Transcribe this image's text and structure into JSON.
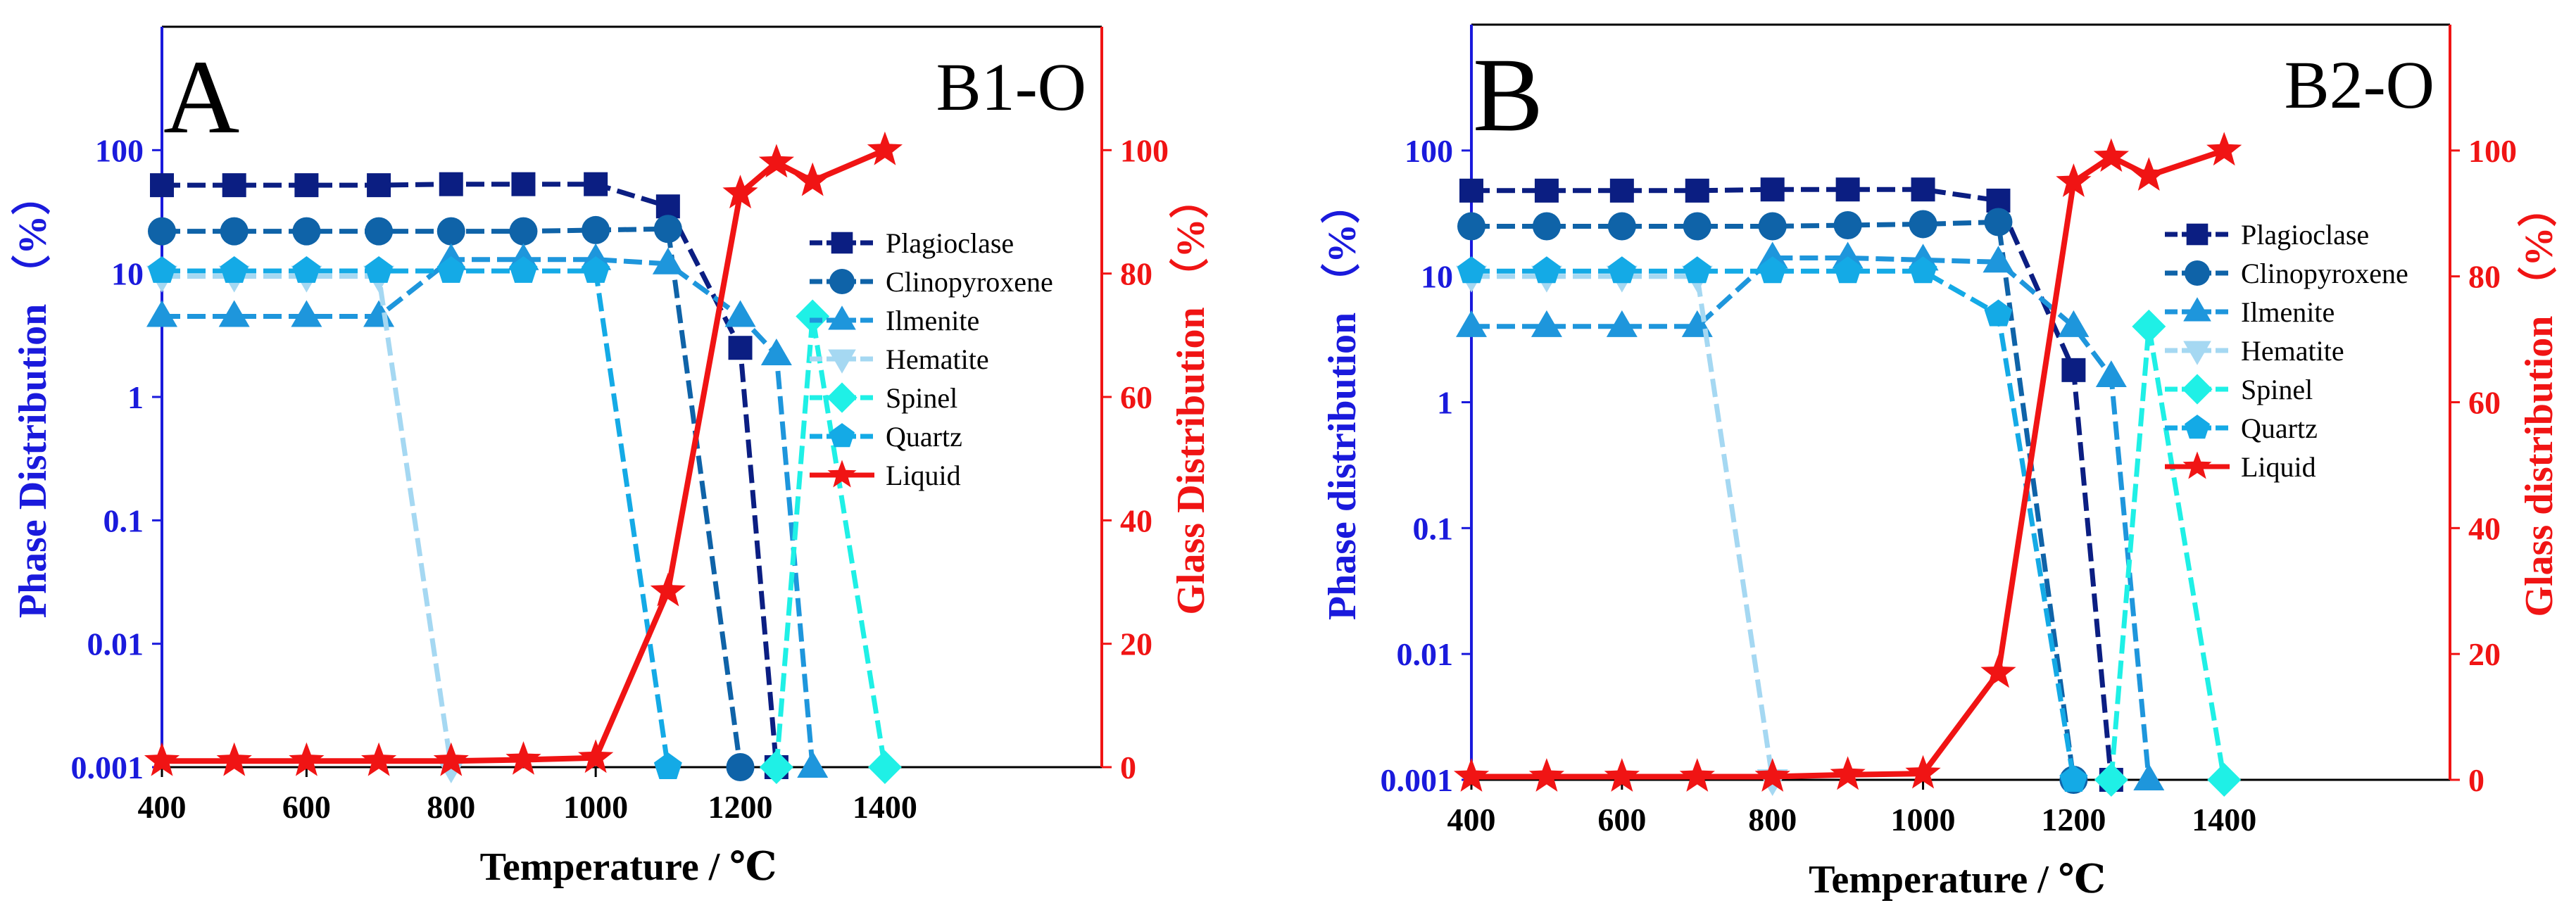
{
  "colors": {
    "left_axis": "#1a1adc",
    "right_axis": "#f01414",
    "frame": "#000000",
    "Plagioclase": "#0b1e82",
    "Clinopyroxene": "#0f63a8",
    "Ilmenite": "#1e96dc",
    "Hematite": "#a5d8f2",
    "Spinel": "#1ff0e6",
    "Quartz": "#14aae6",
    "Liquid": "#f01414"
  },
  "chart_data": [
    {
      "type": "line",
      "panel_letter": "A",
      "title": "B1-O",
      "xlabel": "Temperature / ℃",
      "ylabel": "Phase Distribution （%）",
      "y2label": "Glass Distribution （%）",
      "xlim": [
        400,
        1700
      ],
      "xticks": [
        400,
        600,
        800,
        1000,
        1200,
        1400
      ],
      "xtick_labels": [
        "400",
        "600",
        "800",
        "1000",
        "1200",
        "1400"
      ],
      "ylog_range": [
        0.001,
        1000
      ],
      "yticks": [
        0.001,
        0.01,
        0.1,
        1,
        10,
        100
      ],
      "ytick_labels": [
        "0.001",
        "0.01",
        "0.1",
        "1",
        "10",
        "100"
      ],
      "y2lim": [
        0,
        120
      ],
      "y2ticks": [
        0,
        20,
        40,
        60,
        80,
        100
      ],
      "y2tick_labels": [
        "0",
        "20",
        "40",
        "60",
        "80",
        "100"
      ],
      "legend_position": "right-middle",
      "series": [
        {
          "name": "Plagioclase",
          "axis": "left",
          "marker": "square",
          "x": [
            400,
            500,
            600,
            700,
            800,
            900,
            1000,
            1100,
            1200,
            1250
          ],
          "y": [
            52,
            52,
            52,
            52,
            53,
            53,
            53,
            35,
            2.5,
            0.001
          ]
        },
        {
          "name": "Clinopyroxene",
          "axis": "left",
          "marker": "circle",
          "x": [
            400,
            500,
            600,
            700,
            800,
            900,
            1000,
            1100,
            1200
          ],
          "y": [
            22,
            22,
            22,
            22,
            22,
            22,
            22.5,
            23,
            0.001
          ]
        },
        {
          "name": "Ilmenite",
          "axis": "left",
          "marker": "triangle-up",
          "x": [
            400,
            500,
            600,
            700,
            800,
            900,
            1000,
            1100,
            1200,
            1250,
            1300
          ],
          "y": [
            4.5,
            4.5,
            4.5,
            4.5,
            13,
            13,
            13,
            12,
            4.5,
            2.2,
            0.001
          ]
        },
        {
          "name": "Hematite",
          "axis": "left",
          "marker": "triangle-down",
          "x": [
            400,
            500,
            600,
            700,
            800
          ],
          "y": [
            9.5,
            9.5,
            9.5,
            9.5,
            0.001
          ]
        },
        {
          "name": "Spinel",
          "axis": "left",
          "marker": "diamond",
          "x": [
            1250,
            1300,
            1400
          ],
          "y": [
            0.001,
            4.5,
            0.001
          ]
        },
        {
          "name": "Quartz",
          "axis": "left",
          "marker": "pentagon",
          "x": [
            400,
            500,
            600,
            700,
            800,
            900,
            1000,
            1100
          ],
          "y": [
            10.5,
            10.5,
            10.5,
            10.5,
            10.5,
            10.5,
            10.5,
            0.001
          ]
        },
        {
          "name": "Liquid",
          "axis": "right",
          "marker": "star",
          "x": [
            400,
            500,
            600,
            700,
            800,
            900,
            1000,
            1100,
            1200,
            1250,
            1300,
            1400
          ],
          "y": [
            1,
            1,
            1,
            1,
            1,
            1.2,
            1.5,
            28.5,
            93,
            98,
            95,
            100
          ]
        }
      ]
    },
    {
      "type": "line",
      "panel_letter": "B",
      "title": "B2-O",
      "xlabel": "Temperature / ℃",
      "ylabel": "Phase distribution （%）",
      "y2label": "Glass distribution （%）",
      "xlim": [
        400,
        1700
      ],
      "xticks": [
        400,
        600,
        800,
        1000,
        1200,
        1400
      ],
      "xtick_labels": [
        "400",
        "600",
        "800",
        "1000",
        "1200",
        "1400"
      ],
      "ylog_range": [
        0.001,
        1000
      ],
      "yticks": [
        0.001,
        0.01,
        0.1,
        1,
        10,
        100
      ],
      "ytick_labels": [
        "0.001",
        "0.01",
        "0.1",
        "1",
        "10",
        "100"
      ],
      "y2lim": [
        0,
        120
      ],
      "y2ticks": [
        0,
        20,
        40,
        60,
        80,
        100
      ],
      "y2tick_labels": [
        "0",
        "20",
        "40",
        "60",
        "80",
        "100"
      ],
      "legend_position": "right-middle",
      "series": [
        {
          "name": "Plagioclase",
          "axis": "left",
          "marker": "square",
          "x": [
            400,
            500,
            600,
            700,
            800,
            900,
            1000,
            1100,
            1200,
            1250
          ],
          "y": [
            48,
            48,
            48,
            48,
            49,
            49,
            49,
            40,
            1.8,
            0.001
          ]
        },
        {
          "name": "Clinopyroxene",
          "axis": "left",
          "marker": "circle",
          "x": [
            400,
            500,
            600,
            700,
            800,
            900,
            1000,
            1100,
            1200
          ],
          "y": [
            25,
            25,
            25,
            25,
            25,
            25.5,
            26,
            27,
            0.001
          ]
        },
        {
          "name": "Ilmenite",
          "axis": "left",
          "marker": "triangle-up",
          "x": [
            400,
            500,
            600,
            700,
            800,
            900,
            1000,
            1100,
            1200,
            1250,
            1300
          ],
          "y": [
            4,
            4,
            4,
            4,
            14,
            14,
            13.5,
            13,
            4,
            1.6,
            0.001
          ]
        },
        {
          "name": "Hematite",
          "axis": "left",
          "marker": "triangle-down",
          "x": [
            400,
            500,
            600,
            700,
            800
          ],
          "y": [
            10,
            10,
            10,
            10,
            0.001
          ]
        },
        {
          "name": "Spinel",
          "axis": "left",
          "marker": "diamond",
          "x": [
            1250,
            1300,
            1400
          ],
          "y": [
            0.001,
            4,
            0.001
          ]
        },
        {
          "name": "Quartz",
          "axis": "left",
          "marker": "pentagon",
          "x": [
            400,
            500,
            600,
            700,
            800,
            900,
            1000,
            1100,
            1200
          ],
          "y": [
            11,
            11,
            11,
            11,
            11,
            11,
            11,
            5,
            0.001
          ]
        },
        {
          "name": "Liquid",
          "axis": "right",
          "marker": "star",
          "x": [
            400,
            500,
            600,
            700,
            800,
            900,
            1000,
            1100,
            1200,
            1250,
            1300,
            1400
          ],
          "y": [
            0.5,
            0.5,
            0.5,
            0.5,
            0.5,
            0.8,
            1,
            17,
            95,
            99,
            96,
            100
          ]
        }
      ]
    }
  ]
}
